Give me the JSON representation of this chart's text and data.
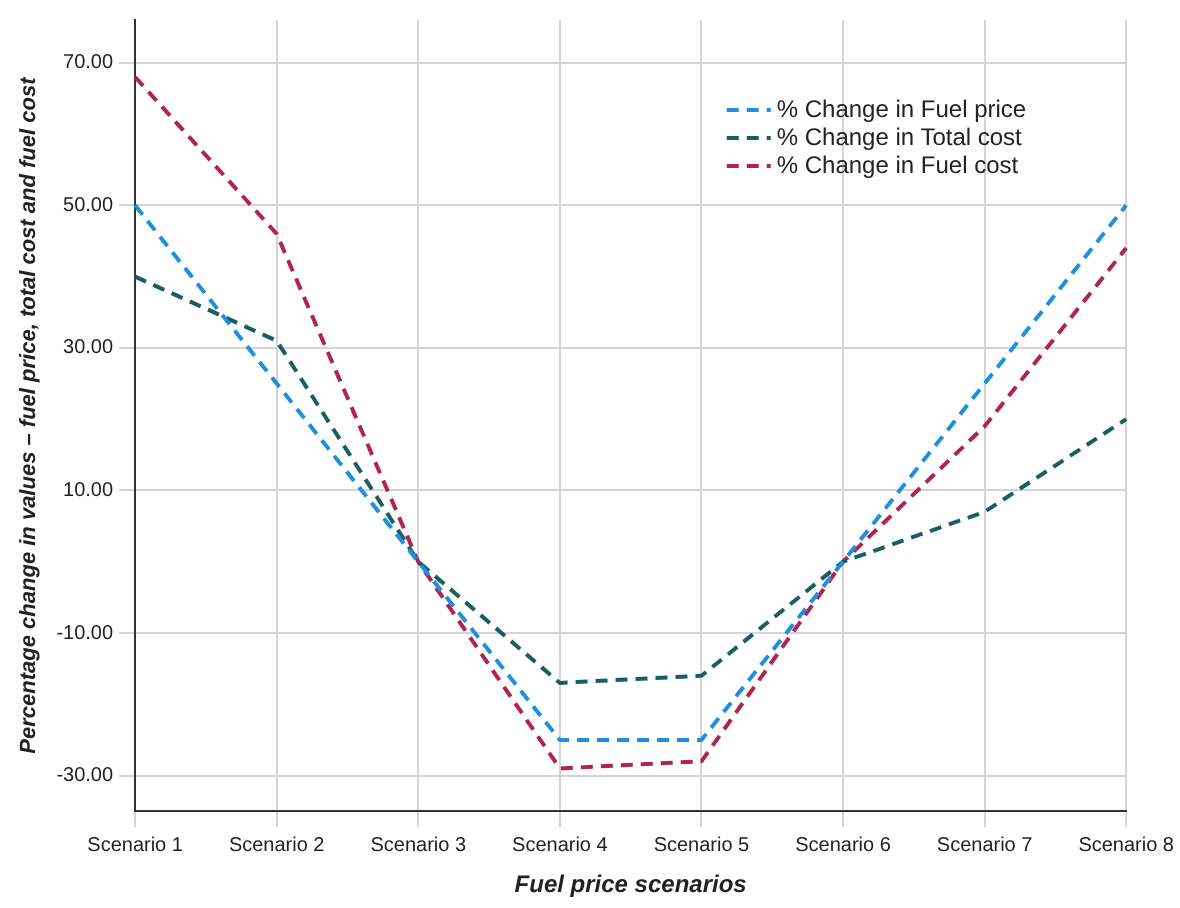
{
  "chart_data": {
    "type": "line",
    "xlabel": "Fuel price scenarios",
    "ylabel": "Percentage change in values – fuel price, total cost and fuel cost",
    "categories": [
      "Scenario 1",
      "Scenario 2",
      "Scenario 3",
      "Scenario 4",
      "Scenario 5",
      "Scenario 6",
      "Scenario 7",
      "Scenario 8"
    ],
    "series": [
      {
        "name": "% Change in Fuel price",
        "color": "#1f8fe0",
        "values": [
          50,
          25,
          0,
          -25,
          -25,
          0,
          25,
          50
        ]
      },
      {
        "name": "% Change in Total cost",
        "color": "#1a5e63",
        "values": [
          40,
          31,
          0,
          -17,
          -16,
          0,
          7,
          20
        ]
      },
      {
        "name": "% Change in Fuel cost",
        "color": "#b0244f",
        "values": [
          68,
          46,
          0,
          -29,
          -28,
          0,
          19,
          44
        ]
      }
    ],
    "ylim": [
      -35,
      76
    ],
    "yticks": [
      {
        "value": -30,
        "label": "-30.00"
      },
      {
        "value": -10,
        "label": "-10.00"
      },
      {
        "value": 10,
        "label": "10.00"
      },
      {
        "value": 30,
        "label": "30.00"
      },
      {
        "value": 50,
        "label": "50.00"
      },
      {
        "value": 70,
        "label": "70.00"
      }
    ],
    "grid": true,
    "legend": "top right",
    "line_style": "dashed",
    "marker": "none"
  }
}
